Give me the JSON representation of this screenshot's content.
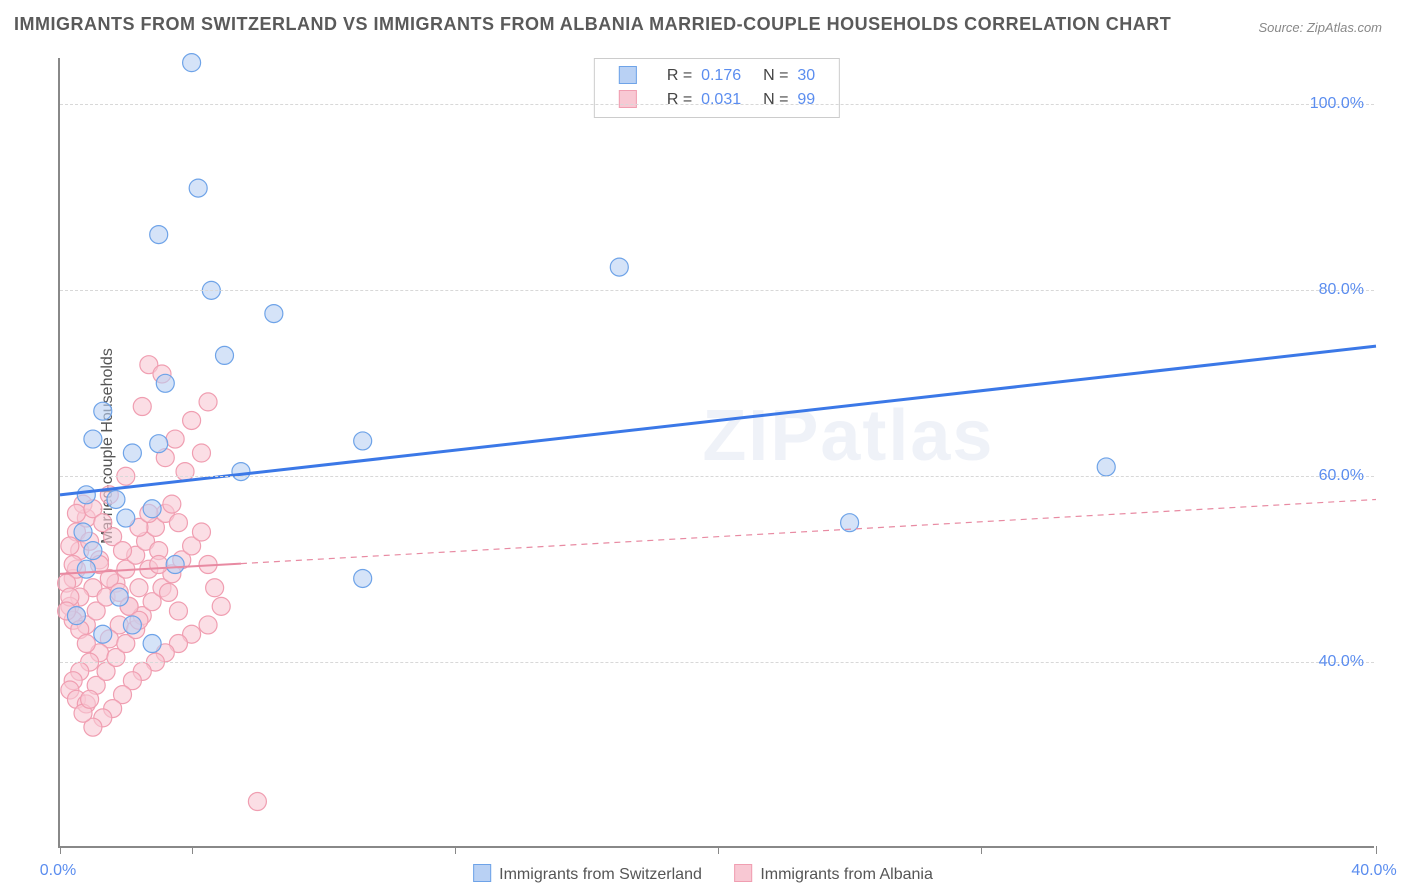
{
  "title": "IMMIGRANTS FROM SWITZERLAND VS IMMIGRANTS FROM ALBANIA MARRIED-COUPLE HOUSEHOLDS CORRELATION CHART",
  "source": "Source: ZipAtlas.com",
  "watermark": "ZIPatlas",
  "chart": {
    "type": "scatter",
    "ylabel": "Married-couple Households",
    "xlim": [
      0,
      40
    ],
    "ylim": [
      20,
      105
    ],
    "x_ticks": [
      0,
      4,
      12,
      20,
      28,
      40
    ],
    "x_tick_labels": [
      "0.0%",
      "",
      "",
      "",
      "",
      "40.0%"
    ],
    "y_ticks": [
      40,
      60,
      80,
      100
    ],
    "y_tick_labels": [
      "40.0%",
      "60.0%",
      "80.0%",
      "100.0%"
    ],
    "grid_color": "#d8d8d8",
    "background_color": "#ffffff",
    "title_fontsize": 18,
    "label_fontsize": 16,
    "tick_label_color": "#5b8def",
    "marker_radius": 9,
    "marker_stroke_width": 1.2,
    "marker_fill_opacity": 0.25
  },
  "series": {
    "switzerland": {
      "label": "Immigrants from Switzerland",
      "color_stroke": "#6ea3e8",
      "color_fill": "#b9d1f4",
      "R": "0.176",
      "N": "30",
      "trend": {
        "x1": 0,
        "y1": 58,
        "x2": 40,
        "y2": 74,
        "solid_until_x": 40,
        "width": 3,
        "color": "#3b78e7"
      },
      "points": [
        [
          4.0,
          104.5
        ],
        [
          4.2,
          91.0
        ],
        [
          3.0,
          86.0
        ],
        [
          4.6,
          80.0
        ],
        [
          6.5,
          77.5
        ],
        [
          5.0,
          73.0
        ],
        [
          3.2,
          70.0
        ],
        [
          1.3,
          67.0
        ],
        [
          1.0,
          64.0
        ],
        [
          3.0,
          63.5
        ],
        [
          2.2,
          62.5
        ],
        [
          9.2,
          63.8
        ],
        [
          5.5,
          60.5
        ],
        [
          17.0,
          82.5
        ],
        [
          0.8,
          58.0
        ],
        [
          2.8,
          56.5
        ],
        [
          2.0,
          55.5
        ],
        [
          0.7,
          54.0
        ],
        [
          1.0,
          52.0
        ],
        [
          3.5,
          50.5
        ],
        [
          2.8,
          42.0
        ],
        [
          9.2,
          49.0
        ],
        [
          24.0,
          55.0
        ],
        [
          31.8,
          61.0
        ],
        [
          1.8,
          47.0
        ],
        [
          0.5,
          45.0
        ],
        [
          2.2,
          44.0
        ],
        [
          1.3,
          43.0
        ],
        [
          0.8,
          50.0
        ],
        [
          1.7,
          57.5
        ]
      ]
    },
    "albania": {
      "label": "Immigrants from Albania",
      "color_stroke": "#f09eb1",
      "color_fill": "#f8c8d3",
      "R": "0.031",
      "N": "99",
      "trend": {
        "x1": 0,
        "y1": 49.5,
        "x2": 40,
        "y2": 57.5,
        "solid_until_x": 5.5,
        "width": 2,
        "color": "#e88aa2",
        "dash": "6 5"
      },
      "points": [
        [
          0.4,
          49.0
        ],
        [
          0.5,
          50.0
        ],
        [
          0.6,
          52.0
        ],
        [
          0.5,
          54.0
        ],
        [
          0.8,
          55.5
        ],
        [
          0.7,
          57.0
        ],
        [
          0.9,
          53.0
        ],
        [
          1.2,
          51.0
        ],
        [
          1.0,
          48.0
        ],
        [
          0.6,
          47.0
        ],
        [
          0.3,
          46.0
        ],
        [
          0.5,
          45.0
        ],
        [
          0.4,
          44.5
        ],
        [
          0.8,
          44.0
        ],
        [
          1.1,
          45.5
        ],
        [
          1.4,
          47.0
        ],
        [
          1.7,
          48.5
        ],
        [
          2.0,
          50.0
        ],
        [
          2.3,
          51.5
        ],
        [
          2.6,
          53.0
        ],
        [
          2.9,
          54.5
        ],
        [
          3.2,
          56.0
        ],
        [
          3.4,
          57.0
        ],
        [
          3.6,
          55.0
        ],
        [
          3.0,
          52.0
        ],
        [
          2.7,
          50.0
        ],
        [
          2.4,
          48.0
        ],
        [
          2.1,
          46.0
        ],
        [
          1.8,
          44.0
        ],
        [
          1.5,
          42.5
        ],
        [
          1.2,
          41.0
        ],
        [
          0.9,
          40.0
        ],
        [
          0.6,
          39.0
        ],
        [
          0.4,
          38.0
        ],
        [
          0.3,
          37.0
        ],
        [
          0.5,
          36.0
        ],
        [
          0.8,
          35.5
        ],
        [
          1.1,
          37.5
        ],
        [
          1.4,
          39.0
        ],
        [
          1.7,
          40.5
        ],
        [
          2.0,
          42.0
        ],
        [
          2.3,
          43.5
        ],
        [
          2.5,
          45.0
        ],
        [
          2.8,
          46.5
        ],
        [
          3.1,
          48.0
        ],
        [
          3.4,
          49.5
        ],
        [
          3.7,
          51.0
        ],
        [
          4.0,
          52.5
        ],
        [
          4.3,
          54.0
        ],
        [
          4.5,
          50.5
        ],
        [
          4.7,
          48.0
        ],
        [
          4.9,
          46.0
        ],
        [
          4.5,
          44.0
        ],
        [
          4.0,
          43.0
        ],
        [
          3.6,
          42.0
        ],
        [
          3.2,
          41.0
        ],
        [
          2.9,
          40.0
        ],
        [
          2.5,
          39.0
        ],
        [
          2.2,
          38.0
        ],
        [
          1.9,
          36.5
        ],
        [
          1.6,
          35.0
        ],
        [
          1.3,
          34.0
        ],
        [
          1.0,
          33.0
        ],
        [
          0.7,
          34.5
        ],
        [
          0.9,
          36.0
        ],
        [
          3.2,
          62.0
        ],
        [
          3.5,
          64.0
        ],
        [
          4.0,
          66.0
        ],
        [
          4.5,
          68.0
        ],
        [
          2.5,
          67.5
        ],
        [
          2.0,
          60.0
        ],
        [
          1.5,
          58.0
        ],
        [
          3.8,
          60.5
        ],
        [
          4.3,
          62.5
        ],
        [
          2.7,
          72.0
        ],
        [
          3.1,
          71.0
        ],
        [
          0.5,
          56.0
        ],
        [
          0.3,
          52.5
        ],
        [
          0.4,
          50.5
        ],
        [
          0.2,
          48.5
        ],
        [
          0.3,
          47.0
        ],
        [
          0.2,
          45.5
        ],
        [
          0.6,
          43.5
        ],
        [
          0.8,
          42.0
        ],
        [
          1.0,
          56.5
        ],
        [
          1.3,
          55.0
        ],
        [
          1.6,
          53.5
        ],
        [
          1.9,
          52.0
        ],
        [
          2.4,
          54.5
        ],
        [
          2.7,
          56.0
        ],
        [
          3.0,
          50.5
        ],
        [
          3.3,
          47.5
        ],
        [
          3.6,
          45.5
        ],
        [
          6.0,
          25.0
        ],
        [
          1.2,
          50.5
        ],
        [
          1.5,
          49.0
        ],
        [
          1.8,
          47.5
        ],
        [
          2.1,
          46.0
        ],
        [
          2.4,
          44.5
        ]
      ]
    }
  },
  "legend_bottom": {
    "items": [
      "switzerland",
      "albania"
    ]
  }
}
